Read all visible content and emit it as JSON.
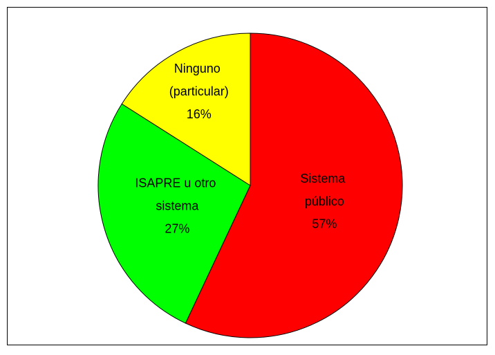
{
  "chart_data": {
    "type": "pie",
    "categories": [
      "Sistema público",
      "ISAPRE u otro sistema",
      "Ninguno (particular)"
    ],
    "values": [
      57,
      27,
      16
    ],
    "value_labels": [
      "57%",
      "27%",
      "16%"
    ],
    "colors": [
      "#ff0000",
      "#00ff00",
      "#ffff00"
    ]
  }
}
